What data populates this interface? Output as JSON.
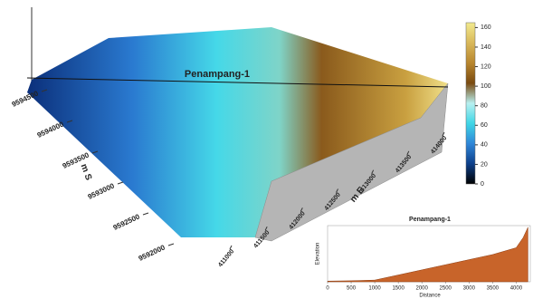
{
  "chart_data": [
    {
      "type": "surface3d",
      "annotation": "Penampang-1",
      "x_label": "m E",
      "y_label": "m S",
      "xticks": [
        411000,
        411500,
        412000,
        412500,
        413000,
        413500,
        414000
      ],
      "yticks": [
        9594500,
        9594000,
        9593500,
        9593000,
        9592500,
        9592000
      ],
      "colorbar": {
        "lim": [
          0,
          165
        ],
        "ticks": [
          0,
          20,
          40,
          60,
          80,
          100,
          120,
          140,
          160
        ],
        "colors": [
          "#000000",
          "#0d3f8a",
          "#2f86d8",
          "#3fd6e6",
          "#b8f0f0",
          "#7a4a10",
          "#b8862e",
          "#d9b85a",
          "#f2ea8e"
        ]
      }
    },
    {
      "type": "area",
      "title": "Penampang-1",
      "x_label": "Distance",
      "y_label": "Elevation",
      "color": "#c8642a",
      "x": [
        0,
        500,
        1000,
        1500,
        2000,
        2500,
        3000,
        3500,
        4000,
        4150,
        4250
      ],
      "values": [
        2,
        3,
        5,
        20,
        35,
        50,
        65,
        80,
        100,
        130,
        160
      ],
      "xlim": [
        0,
        4300
      ],
      "ylim": [
        0,
        165
      ],
      "xticks": [
        0,
        500,
        1000,
        1500,
        2000,
        2500,
        3000,
        3500,
        4000
      ]
    }
  ]
}
